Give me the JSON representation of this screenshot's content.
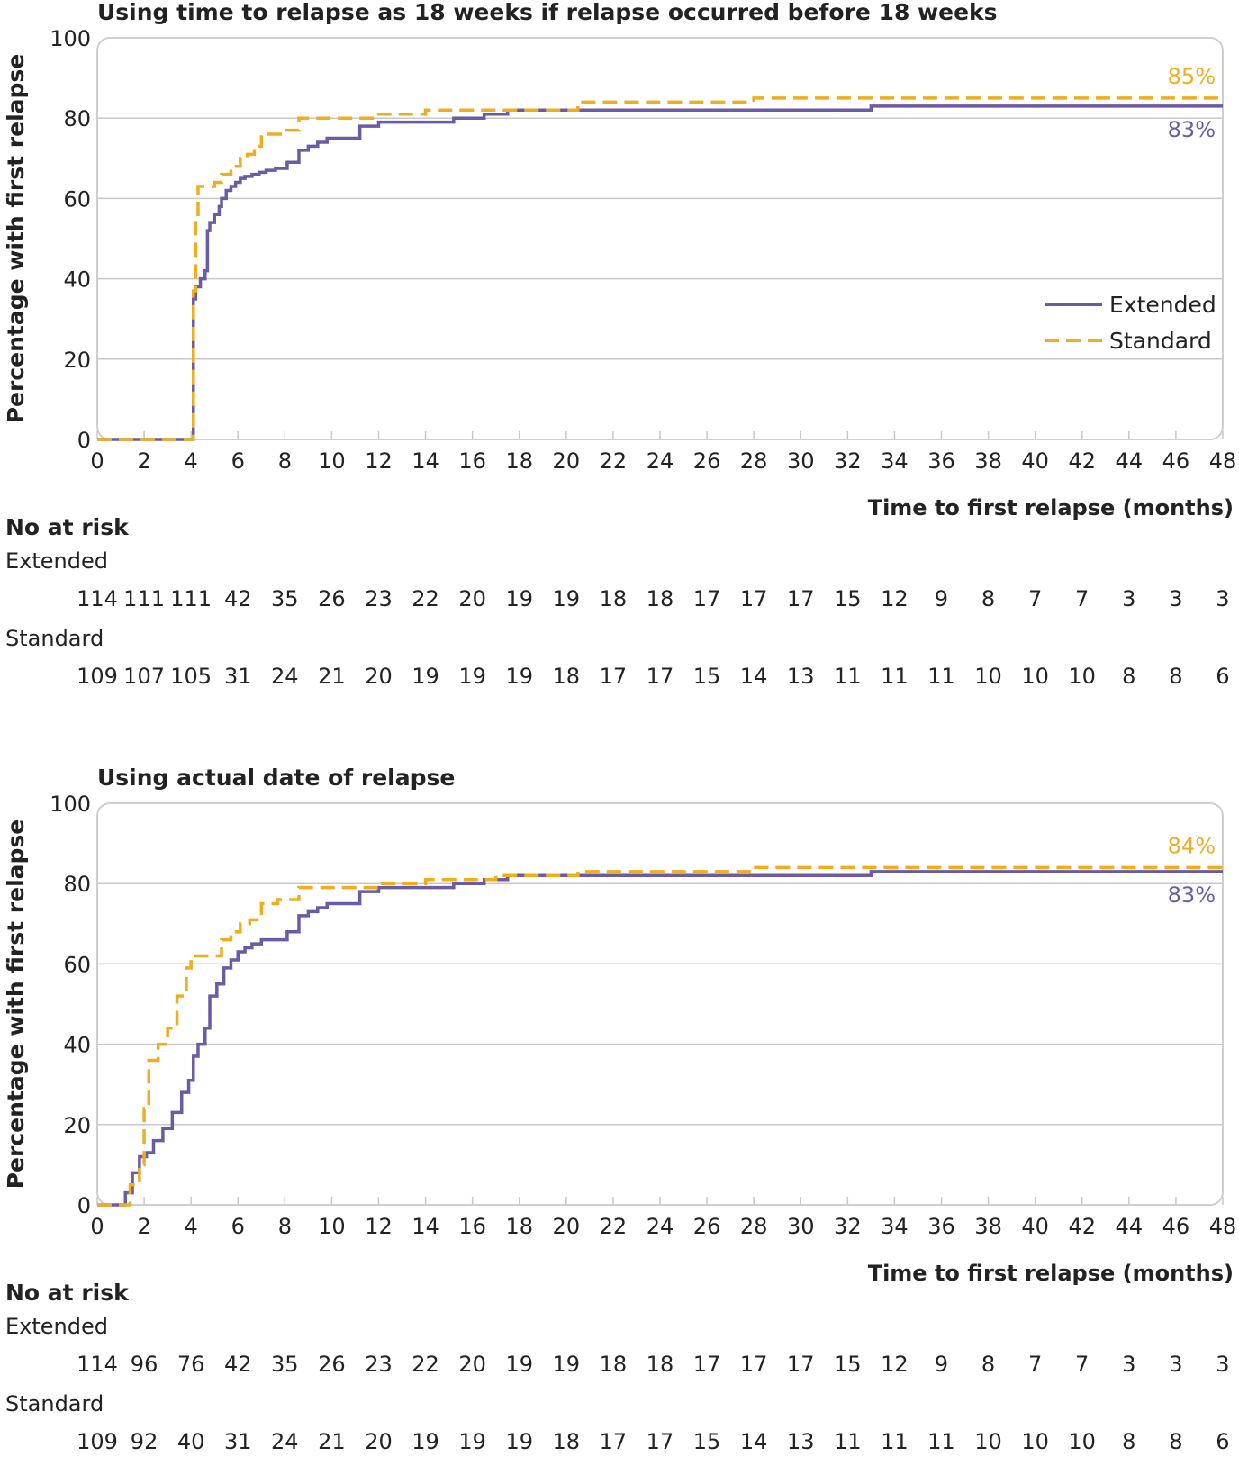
{
  "colors": {
    "extended": "#6b5aa6",
    "standard": "#f0ae1e",
    "grid": "#c8c8c8",
    "frame": "#cfcfcf"
  },
  "legend": {
    "extended": "Extended",
    "standard": "Standard"
  },
  "chart_data": [
    {
      "type": "line",
      "title": "Using time to relapse as 18 weeks if relapse occurred before 18 weeks",
      "ylabel": "Percentage with first relapse",
      "xlabel": "Time to first relapse (months)",
      "xlim": [
        0,
        48
      ],
      "ylim": [
        0,
        100
      ],
      "xticks": [
        0,
        2,
        4,
        6,
        8,
        10,
        12,
        14,
        16,
        18,
        20,
        22,
        24,
        26,
        28,
        30,
        32,
        34,
        36,
        38,
        40,
        42,
        44,
        46,
        48
      ],
      "yticks": [
        0,
        20,
        40,
        60,
        80,
        100
      ],
      "series": [
        {
          "name": "Extended",
          "style": "solid",
          "end_label": "83%",
          "x": [
            0,
            4.1,
            4.1,
            4.2,
            4.4,
            4.6,
            4.7,
            4.8,
            5.0,
            5.2,
            5.3,
            5.5,
            5.7,
            5.9,
            6.1,
            6.3,
            6.6,
            6.9,
            7.2,
            7.6,
            8.1,
            8.6,
            9.0,
            9.4,
            9.8,
            10.5,
            11.2,
            12.0,
            13.5,
            15.2,
            16.5,
            17.5,
            20.0,
            27.0,
            33.0,
            41.0,
            48.0
          ],
          "values": [
            0,
            0,
            35,
            38,
            40,
            42,
            52,
            54,
            56,
            58,
            60,
            62,
            63,
            64,
            65,
            65.5,
            66,
            66.5,
            67,
            67.5,
            69,
            72,
            73,
            74,
            75,
            75,
            78,
            79,
            79,
            80,
            81,
            82,
            82,
            82,
            83,
            83,
            83
          ]
        },
        {
          "name": "Standard",
          "style": "dashed",
          "end_label": "85%",
          "x": [
            0,
            4.1,
            4.1,
            4.2,
            4.3,
            5.0,
            5.3,
            5.7,
            6.1,
            6.4,
            6.7,
            7.0,
            8.0,
            8.6,
            10.0,
            12.0,
            14.0,
            17.0,
            20.5,
            28.0,
            40.0,
            48.0
          ],
          "values": [
            0,
            0,
            37,
            55,
            63,
            64,
            66,
            68,
            70,
            71,
            73,
            76,
            77,
            80,
            80,
            81,
            82,
            82,
            84,
            85,
            85,
            85
          ]
        }
      ],
      "at_risk": {
        "heading": "No at risk",
        "groups": [
          {
            "name": "Extended",
            "values": [
              "114",
              "111",
              "111",
              "42",
              "35",
              "26",
              "23",
              "22",
              "20",
              "19",
              "19",
              "18",
              "18",
              "17",
              "17",
              "17",
              "15",
              "12",
              "9",
              "8",
              "7",
              "7",
              "3",
              "3",
              "3"
            ]
          },
          {
            "name": "Standard",
            "values": [
              "109",
              "107",
              "105",
              "31",
              "24",
              "21",
              "20",
              "19",
              "19",
              "19",
              "18",
              "17",
              "17",
              "15",
              "14",
              "13",
              "11",
              "11",
              "11",
              "10",
              "10",
              "10",
              "8",
              "8",
              "6"
            ]
          }
        ]
      }
    },
    {
      "type": "line",
      "title": "Using actual date of relapse",
      "ylabel": "Percentage with first relapse",
      "xlabel": "Time to first relapse (months)",
      "xlim": [
        0,
        48
      ],
      "ylim": [
        0,
        100
      ],
      "xticks": [
        0,
        2,
        4,
        6,
        8,
        10,
        12,
        14,
        16,
        18,
        20,
        22,
        24,
        26,
        28,
        30,
        32,
        34,
        36,
        38,
        40,
        42,
        44,
        46,
        48
      ],
      "yticks": [
        0,
        20,
        40,
        60,
        80,
        100
      ],
      "series": [
        {
          "name": "Extended",
          "style": "solid",
          "end_label": "83%",
          "x": [
            0,
            1.0,
            1.2,
            1.5,
            1.8,
            2.1,
            2.4,
            2.8,
            3.2,
            3.6,
            3.9,
            4.1,
            4.3,
            4.6,
            4.8,
            5.1,
            5.4,
            5.7,
            6.0,
            6.3,
            6.6,
            7.0,
            7.5,
            8.1,
            8.6,
            9.0,
            9.4,
            9.8,
            10.5,
            11.2,
            12.0,
            13.5,
            15.2,
            16.5,
            17.5,
            20.0,
            27.0,
            33.0,
            41.0,
            48.0
          ],
          "values": [
            0,
            0,
            3,
            8,
            12,
            13,
            16,
            19,
            23,
            28,
            31,
            37,
            40,
            44,
            52,
            55,
            59,
            61,
            63,
            64,
            65,
            66,
            66,
            68,
            72,
            73,
            74,
            75,
            75,
            78,
            79,
            79,
            80,
            81,
            82,
            82,
            82,
            83,
            83,
            83
          ]
        },
        {
          "name": "Standard",
          "style": "dashed",
          "end_label": "84%",
          "x": [
            0,
            1.0,
            1.4,
            1.8,
            2.0,
            2.2,
            2.6,
            3.0,
            3.4,
            3.8,
            4.0,
            4.6,
            5.3,
            5.7,
            6.1,
            6.5,
            7.0,
            7.7,
            8.6,
            10.0,
            12.0,
            14.0,
            17.0,
            20.5,
            28.0,
            40.0,
            48.0
          ],
          "values": [
            0,
            0,
            5,
            10,
            24,
            36,
            40,
            44,
            52,
            59,
            62,
            62,
            66,
            68,
            70,
            71,
            75,
            76,
            79,
            79,
            80,
            81,
            82,
            83,
            84,
            84,
            84
          ]
        }
      ],
      "at_risk": {
        "heading": "No at risk",
        "groups": [
          {
            "name": "Extended",
            "values": [
              "114",
              "96",
              "76",
              "42",
              "35",
              "26",
              "23",
              "22",
              "20",
              "19",
              "19",
              "18",
              "18",
              "17",
              "17",
              "17",
              "15",
              "12",
              "9",
              "8",
              "7",
              "7",
              "3",
              "3",
              "3"
            ]
          },
          {
            "name": "Standard",
            "values": [
              "109",
              "92",
              "40",
              "31",
              "24",
              "21",
              "20",
              "19",
              "19",
              "19",
              "18",
              "17",
              "17",
              "15",
              "14",
              "13",
              "11",
              "11",
              "11",
              "10",
              "10",
              "10",
              "8",
              "8",
              "6"
            ]
          }
        ]
      }
    }
  ]
}
